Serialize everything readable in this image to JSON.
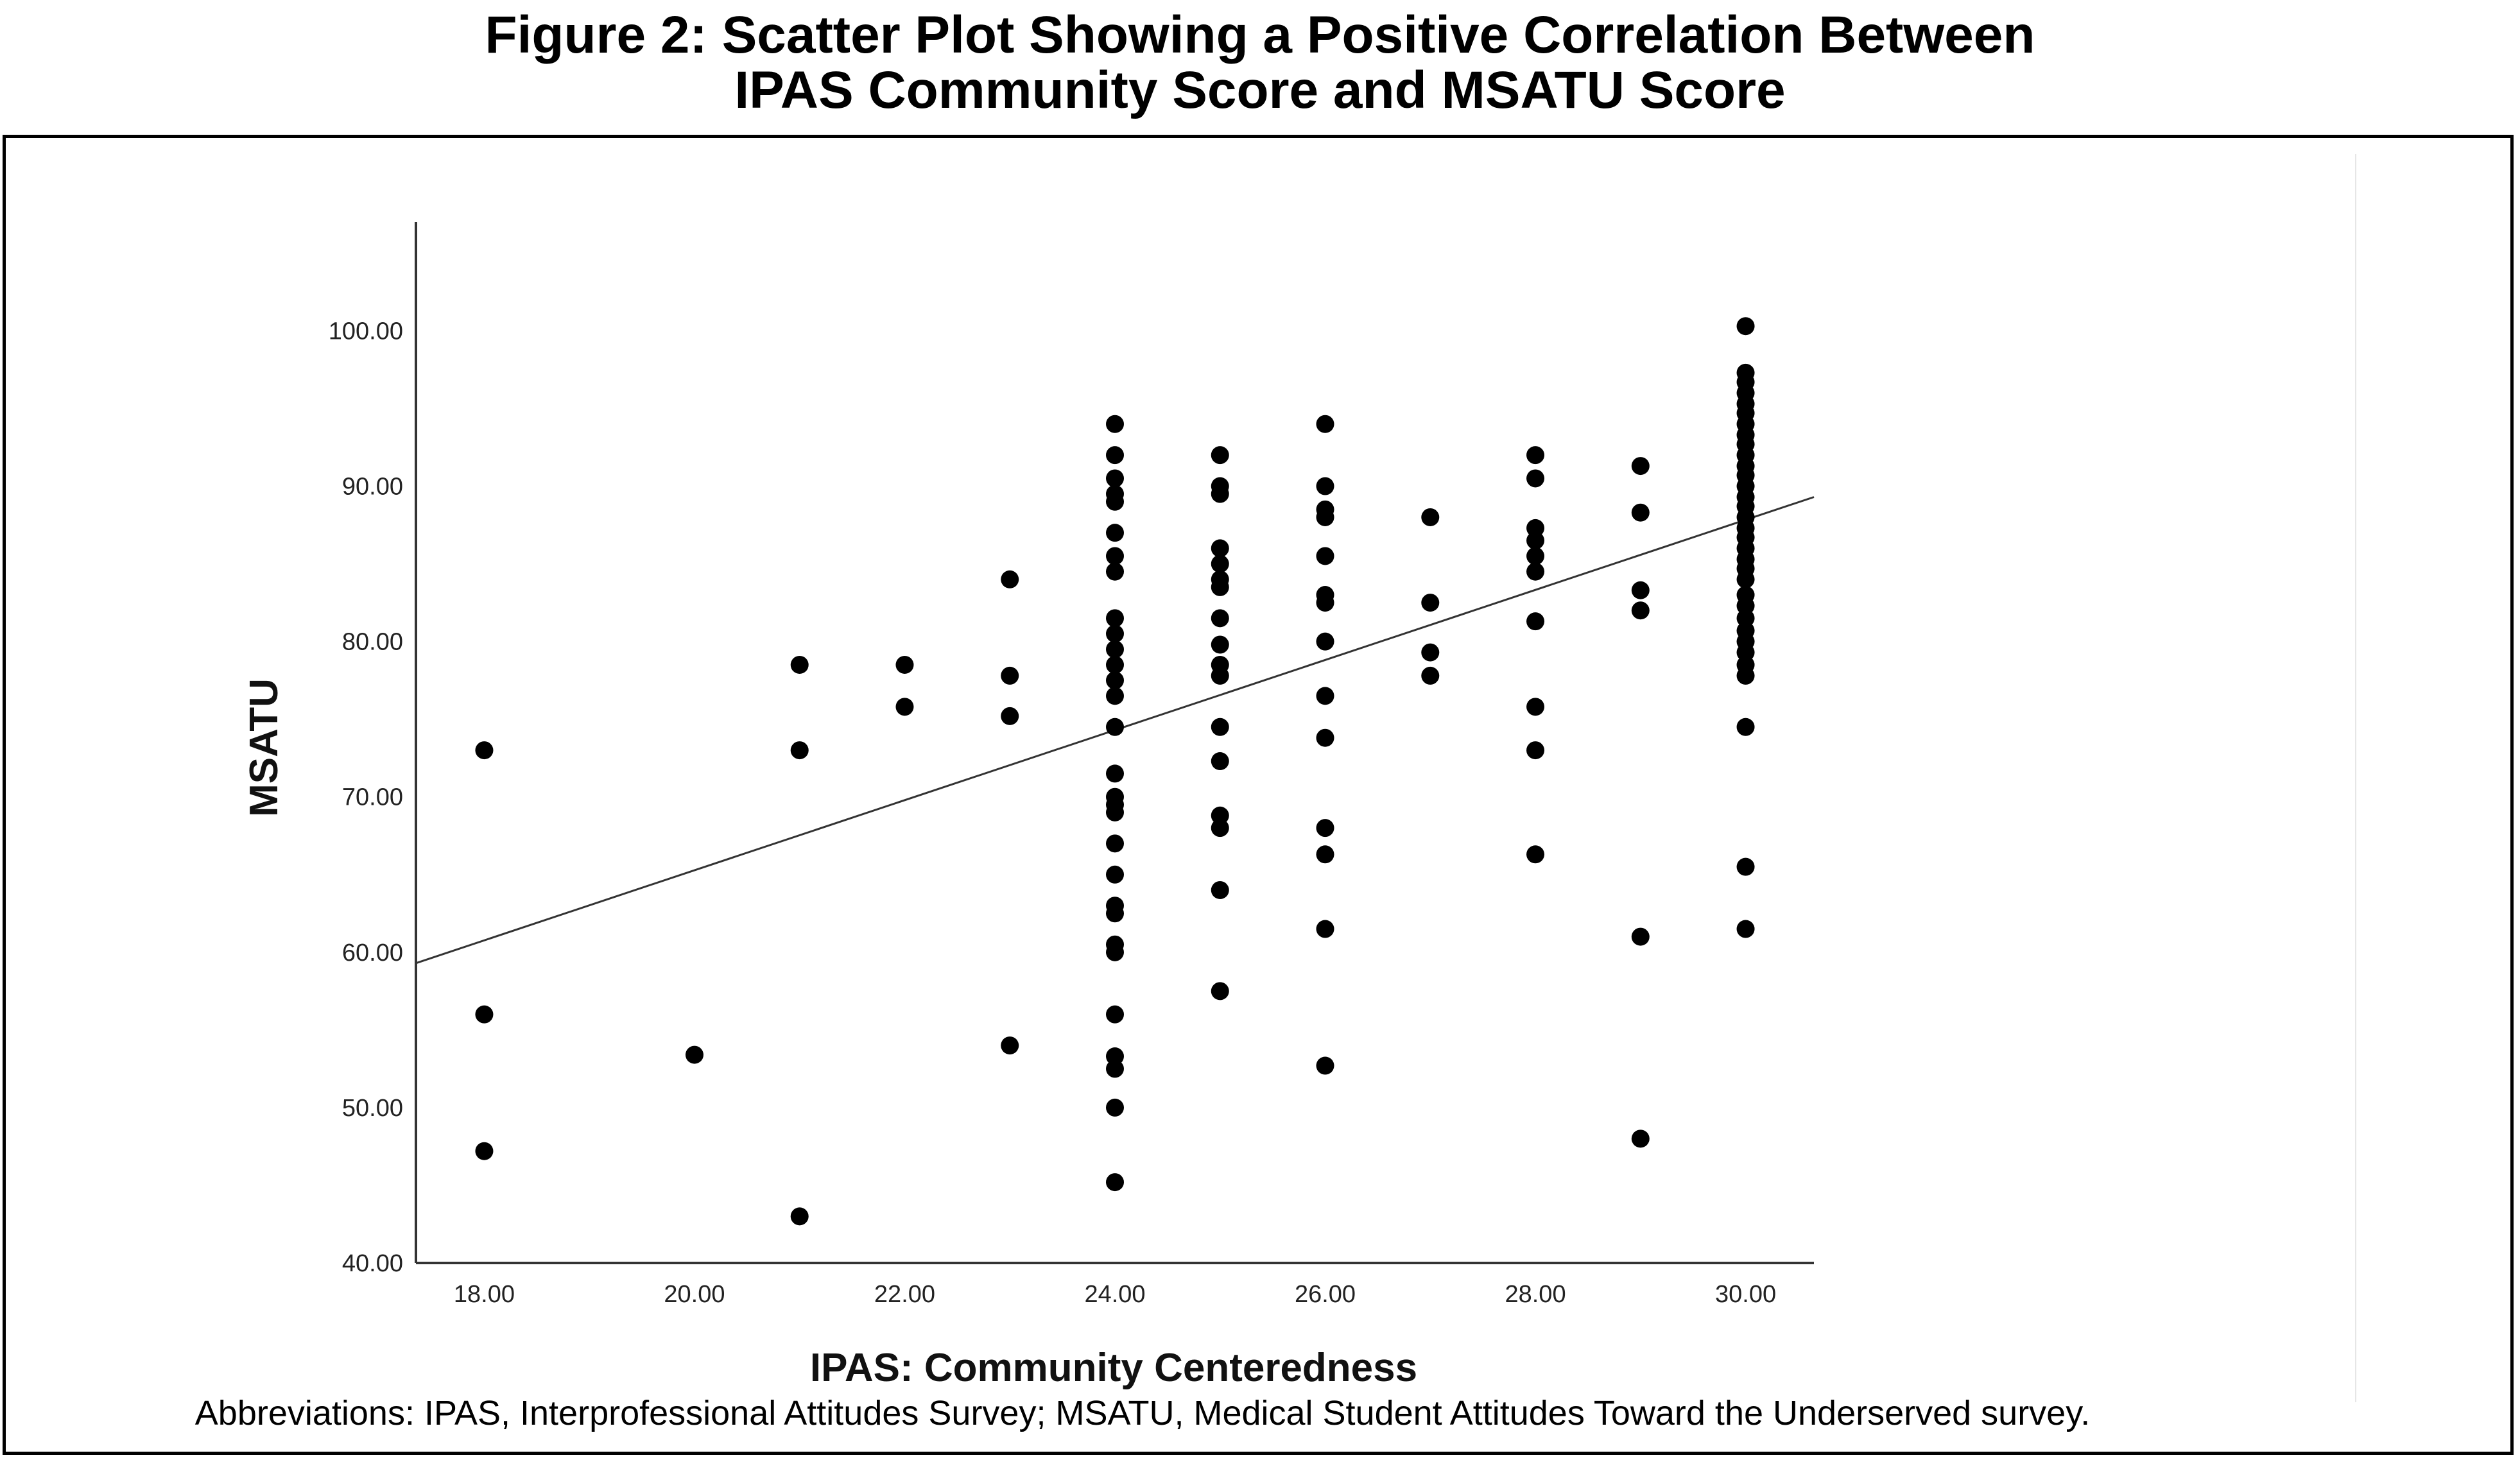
{
  "figure": {
    "title_line1": "Figure 2: Scatter Plot Showing a Positive Correlation Between",
    "title_line2": "IPAS Community Score and MSATU Score",
    "note": "Abbreviations: IPAS, Interprofessional Attitudes Survey; MSATU,  Medical Student Attitudes Toward the Underserved survey."
  },
  "chart_data": {
    "type": "scatter",
    "title": "",
    "xlabel": "IPAS: Community Centeredness",
    "ylabel": "MSATU",
    "xlim": [
      17.35,
      30.65
    ],
    "ylim": [
      40,
      107
    ],
    "x_ticks": [
      18,
      20,
      22,
      24,
      26,
      28,
      30
    ],
    "x_tick_labels": [
      "18.00",
      "20.00",
      "22.00",
      "24.00",
      "26.00",
      "28.00",
      "30.00"
    ],
    "y_ticks": [
      40,
      50,
      60,
      70,
      80,
      90,
      100
    ],
    "y_tick_labels": [
      "40.00",
      "50.00",
      "60.00",
      "70.00",
      "80.00",
      "90.00",
      "100.00"
    ],
    "grid": false,
    "fit_line": {
      "x": [
        17.35,
        30.65
      ],
      "y": [
        59.3,
        89.3
      ]
    },
    "points": [
      [
        18,
        73.0
      ],
      [
        18,
        56.0
      ],
      [
        18,
        47.2
      ],
      [
        20,
        53.4
      ],
      [
        21,
        78.5
      ],
      [
        21,
        73.0
      ],
      [
        21,
        43.0
      ],
      [
        22,
        78.5
      ],
      [
        22,
        75.8
      ],
      [
        23,
        84.0
      ],
      [
        23,
        77.8
      ],
      [
        23,
        75.2
      ],
      [
        23,
        54.0
      ],
      [
        24,
        94.0
      ],
      [
        24,
        92.0
      ],
      [
        24,
        90.5
      ],
      [
        24,
        89.5
      ],
      [
        24,
        89.0
      ],
      [
        24,
        87.0
      ],
      [
        24,
        85.5
      ],
      [
        24,
        84.5
      ],
      [
        24,
        81.5
      ],
      [
        24,
        80.5
      ],
      [
        24,
        79.5
      ],
      [
        24,
        78.5
      ],
      [
        24,
        77.5
      ],
      [
        24,
        76.5
      ],
      [
        24,
        74.5
      ],
      [
        24,
        71.5
      ],
      [
        24,
        70.0
      ],
      [
        24,
        69.5
      ],
      [
        24,
        69.0
      ],
      [
        24,
        67.0
      ],
      [
        24,
        65.0
      ],
      [
        24,
        63.0
      ],
      [
        24,
        62.5
      ],
      [
        24,
        60.5
      ],
      [
        24,
        60.0
      ],
      [
        24,
        56.0
      ],
      [
        24,
        53.3
      ],
      [
        24,
        52.5
      ],
      [
        24,
        50.0
      ],
      [
        24,
        45.2
      ],
      [
        25,
        92.0
      ],
      [
        25,
        90.0
      ],
      [
        25,
        89.5
      ],
      [
        25,
        86.0
      ],
      [
        25,
        85.0
      ],
      [
        25,
        84.0
      ],
      [
        25,
        83.5
      ],
      [
        25,
        81.5
      ],
      [
        25,
        79.8
      ],
      [
        25,
        78.5
      ],
      [
        25,
        77.8
      ],
      [
        25,
        74.5
      ],
      [
        25,
        72.3
      ],
      [
        25,
        68.8
      ],
      [
        25,
        68.0
      ],
      [
        25,
        64.0
      ],
      [
        25,
        57.5
      ],
      [
        26,
        94.0
      ],
      [
        26,
        90.0
      ],
      [
        26,
        88.5
      ],
      [
        26,
        88.0
      ],
      [
        26,
        85.5
      ],
      [
        26,
        83.0
      ],
      [
        26,
        82.5
      ],
      [
        26,
        80.0
      ],
      [
        26,
        76.5
      ],
      [
        26,
        73.8
      ],
      [
        26,
        68.0
      ],
      [
        26,
        66.3
      ],
      [
        26,
        61.5
      ],
      [
        26,
        52.7
      ],
      [
        27,
        88.0
      ],
      [
        27,
        82.5
      ],
      [
        27,
        79.3
      ],
      [
        27,
        77.8
      ],
      [
        28,
        92.0
      ],
      [
        28,
        90.5
      ],
      [
        28,
        87.3
      ],
      [
        28,
        86.5
      ],
      [
        28,
        85.5
      ],
      [
        28,
        84.5
      ],
      [
        28,
        81.3
      ],
      [
        28,
        75.8
      ],
      [
        28,
        73.0
      ],
      [
        28,
        66.3
      ],
      [
        29,
        91.3
      ],
      [
        29,
        88.3
      ],
      [
        29,
        83.3
      ],
      [
        29,
        82.0
      ],
      [
        29,
        61.0
      ],
      [
        29,
        48.0
      ],
      [
        30,
        100.3
      ],
      [
        30,
        97.3
      ],
      [
        30,
        96.7
      ],
      [
        30,
        96.0
      ],
      [
        30,
        95.3
      ],
      [
        30,
        94.7
      ],
      [
        30,
        94.0
      ],
      [
        30,
        93.3
      ],
      [
        30,
        92.7
      ],
      [
        30,
        92.0
      ],
      [
        30,
        91.3
      ],
      [
        30,
        90.7
      ],
      [
        30,
        90.0
      ],
      [
        30,
        89.3
      ],
      [
        30,
        88.7
      ],
      [
        30,
        88.0
      ],
      [
        30,
        87.3
      ],
      [
        30,
        86.7
      ],
      [
        30,
        86.0
      ],
      [
        30,
        85.3
      ],
      [
        30,
        84.7
      ],
      [
        30,
        84.0
      ],
      [
        30,
        83.0
      ],
      [
        30,
        82.3
      ],
      [
        30,
        81.5
      ],
      [
        30,
        80.7
      ],
      [
        30,
        80.0
      ],
      [
        30,
        79.3
      ],
      [
        30,
        78.5
      ],
      [
        30,
        77.8
      ],
      [
        30,
        74.5
      ],
      [
        30,
        65.5
      ],
      [
        30,
        61.5
      ]
    ],
    "marker_color": "#000000",
    "line_color": "#333333"
  }
}
